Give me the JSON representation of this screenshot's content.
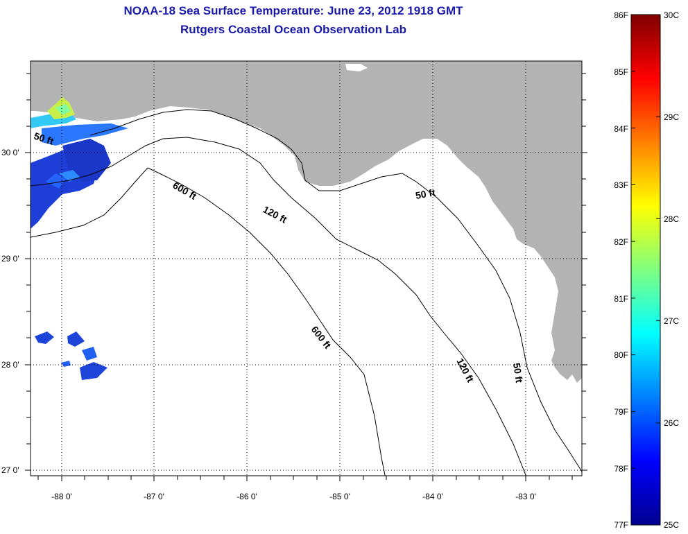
{
  "title": "NOAA-18 Sea Surface Temperature:  June 23, 2012 1918 GMT",
  "subtitle": "Rutgers Coastal Ocean Observation Lab",
  "map": {
    "lon_ticks": [
      "-88 0'",
      "-87 0'",
      "-86 0'",
      "-85 0'",
      "-84 0'",
      "-83 0'"
    ],
    "lat_ticks": [
      "30 0'",
      "29 0'",
      "28 0'",
      "27 0'"
    ],
    "contour_labels": {
      "c50_west": "50 ft",
      "c600_north": "600 ft",
      "c120_north": "120 ft",
      "c50_north": "50 ft",
      "c600_south": "600 ft",
      "c120_south": "120 ft",
      "c50_south": "50 ft"
    },
    "land_color": "#b3b3b3",
    "water_color": "#ffffff"
  },
  "colorbar": {
    "fahrenheit": [
      "86F",
      "85F",
      "84F",
      "83F",
      "82F",
      "81F",
      "80F",
      "79F",
      "78F",
      "77F"
    ],
    "celsius": [
      "30C",
      "29C",
      "28C",
      "27C",
      "26C",
      "25C"
    ],
    "range_f": [
      77,
      86
    ],
    "range_c": [
      25,
      30
    ],
    "colormap": "jet"
  }
}
